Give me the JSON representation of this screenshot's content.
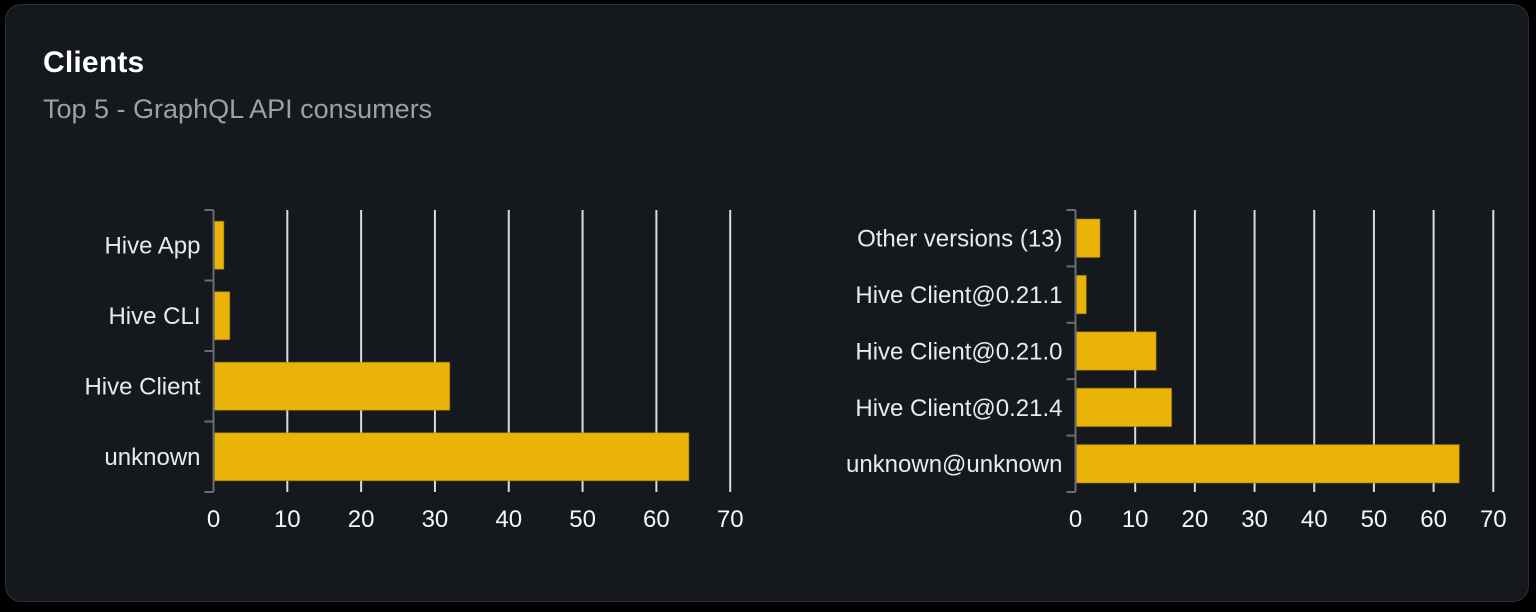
{
  "card": {
    "title": "Clients",
    "subtitle": "Top 5 - GraphQL API consumers"
  },
  "colors": {
    "bar": "#eab308",
    "bar_stroke": "#a97f07",
    "grid": "#d8dce2",
    "axis": "#686c74",
    "category_label": "#e8eaed",
    "tick_label": "#f5f6f7",
    "card_bg": "#15181d",
    "card_border": "#2b2e35",
    "page_bg": "#000000",
    "title": "#ffffff",
    "subtitle": "#9ba1a8"
  },
  "chart_data": [
    {
      "type": "bar",
      "orientation": "horizontal",
      "title": "",
      "categories": [
        "Hive App",
        "Hive CLI",
        "Hive Client",
        "unknown"
      ],
      "values": [
        1.4,
        2.2,
        32,
        64.4
      ],
      "xlabel": "",
      "ylabel": "",
      "xlim": [
        0,
        70
      ],
      "xticks": [
        0,
        10,
        20,
        30,
        40,
        50,
        60,
        70
      ],
      "grid": true,
      "legend": false
    },
    {
      "type": "bar",
      "orientation": "horizontal",
      "title": "",
      "categories": [
        "Other versions (13)",
        "Hive Client@0.21.1",
        "Hive Client@0.21.0",
        "Hive Client@0.21.4",
        "unknown@unknown"
      ],
      "values": [
        4.1,
        1.8,
        13.5,
        16.1,
        64.3
      ],
      "xlabel": "",
      "ylabel": "",
      "xlim": [
        0,
        70
      ],
      "xticks": [
        0,
        10,
        20,
        30,
        40,
        50,
        60,
        70
      ],
      "grid": true,
      "legend": false
    }
  ]
}
